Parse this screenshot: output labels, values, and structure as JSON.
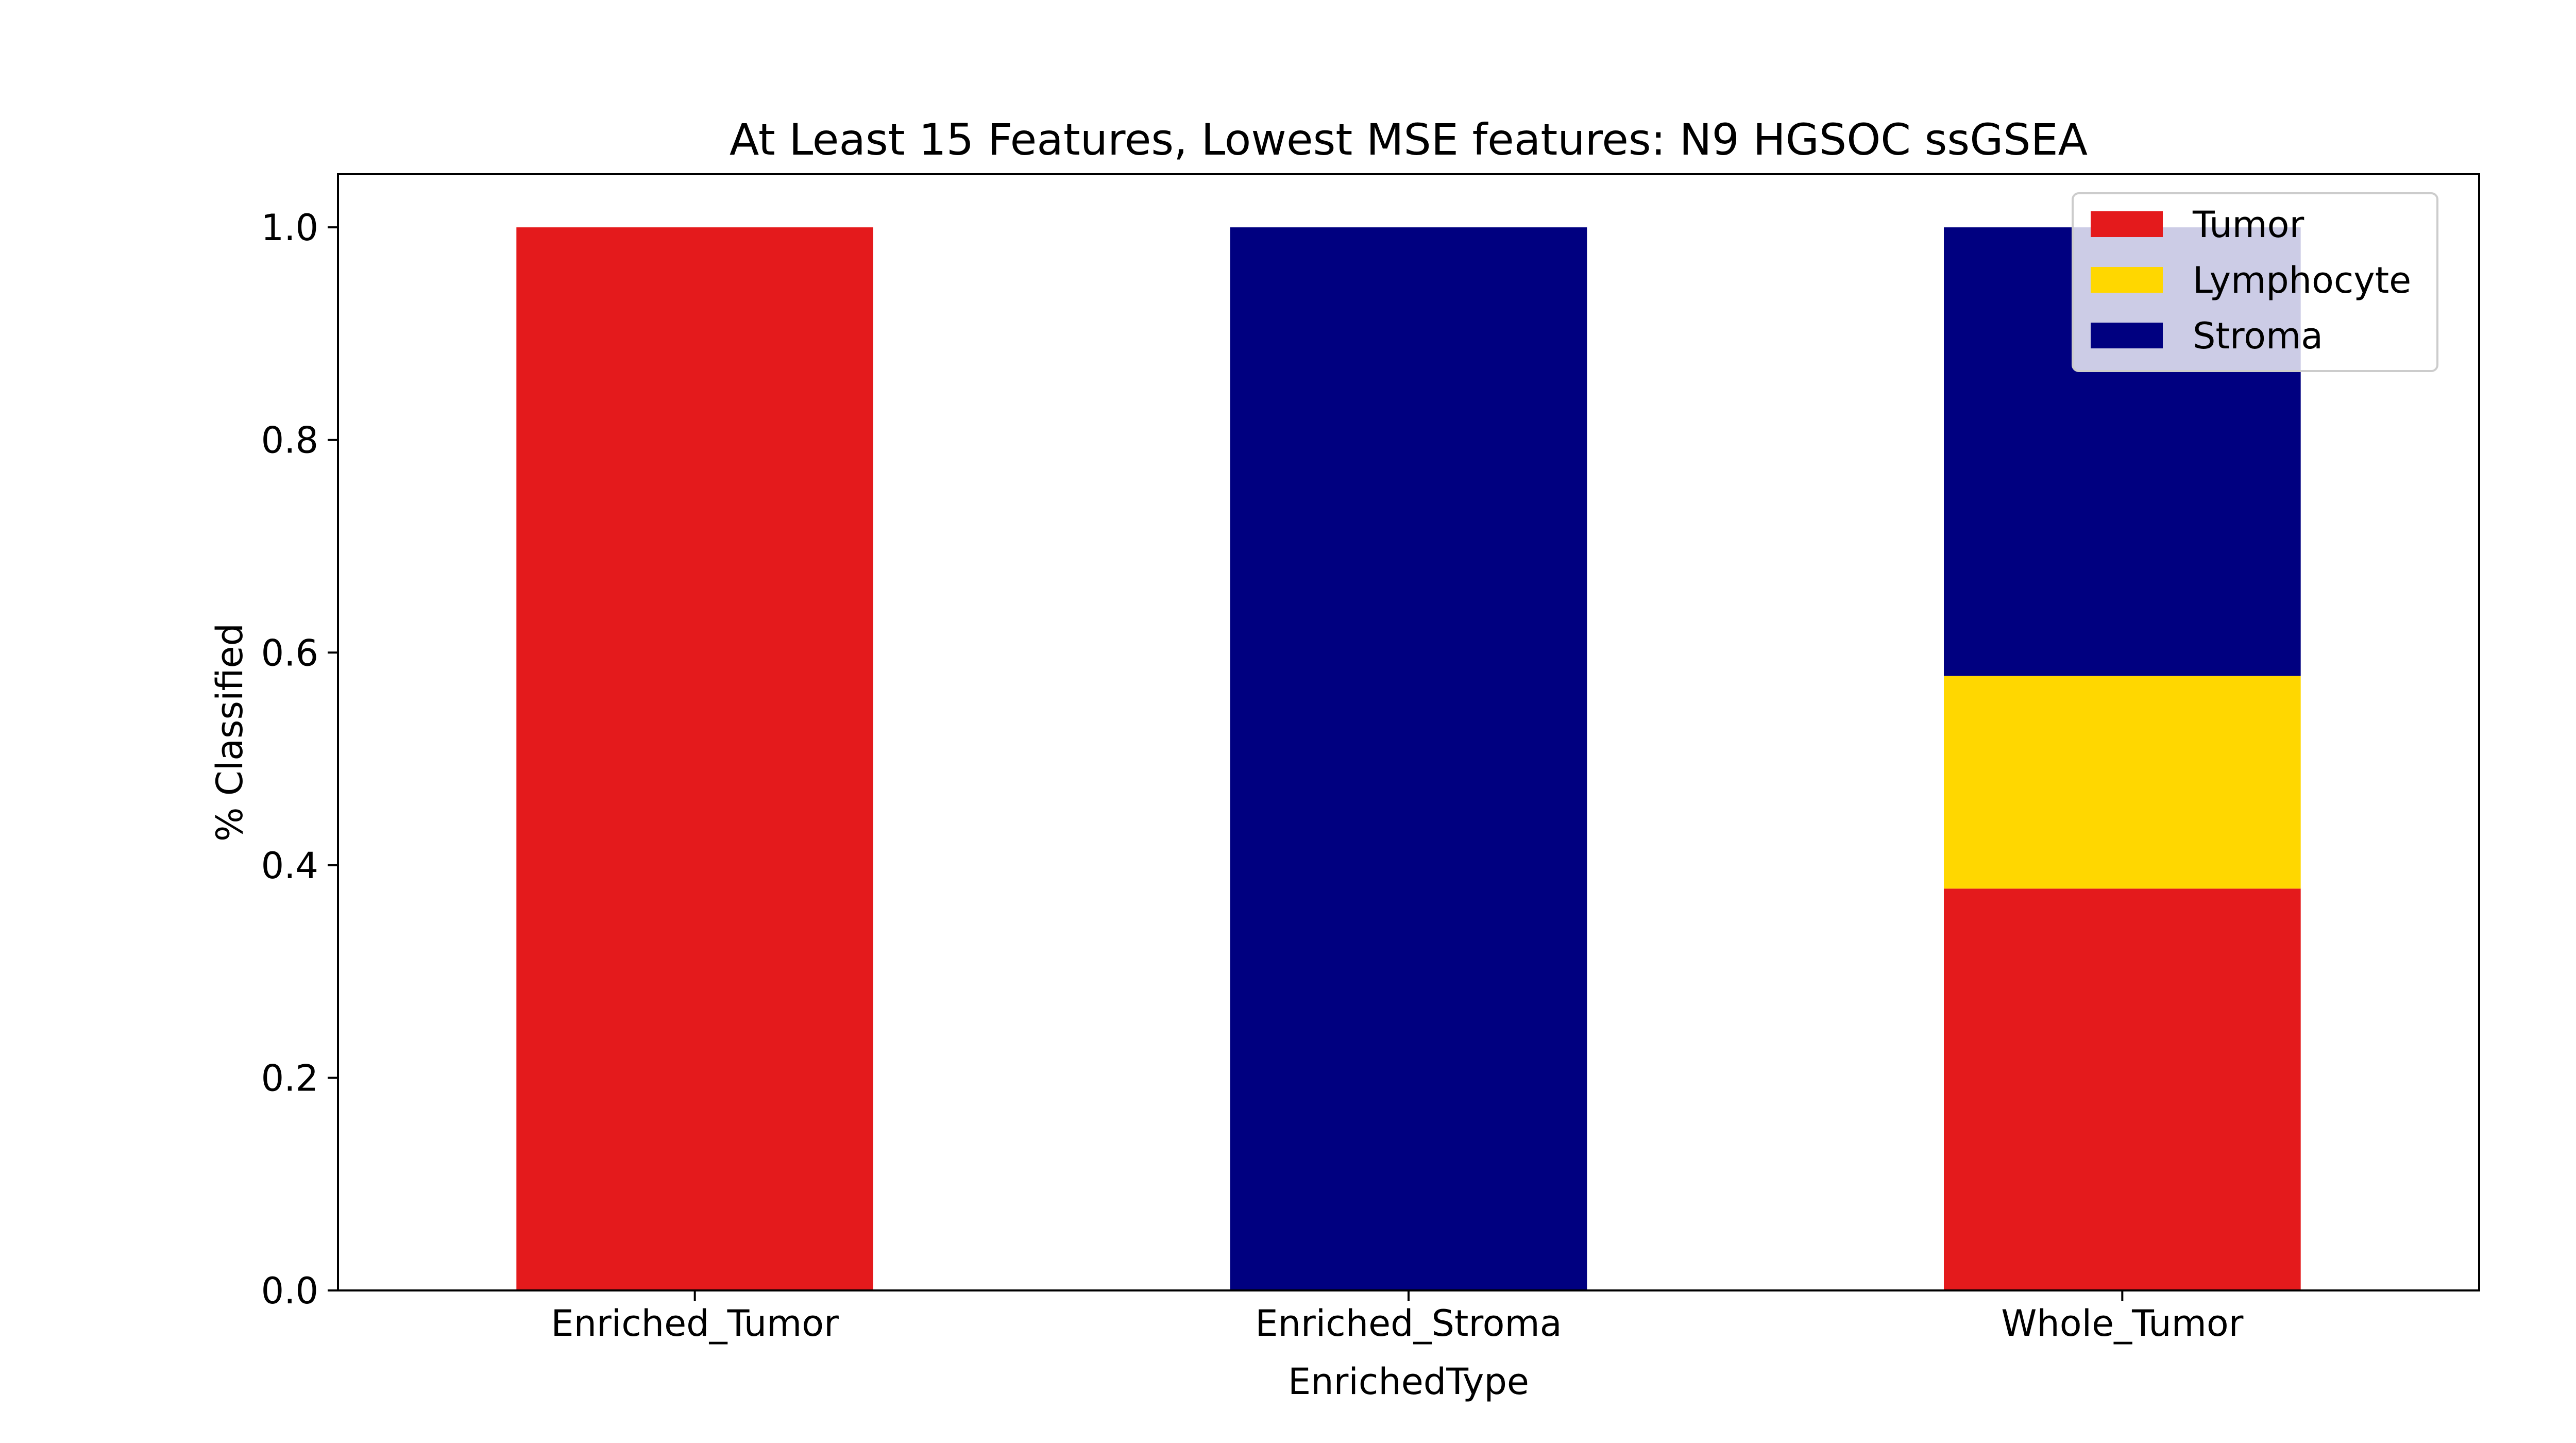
{
  "chart_data": {
    "type": "bar",
    "stacked": true,
    "title": "At Least 15 Features, Lowest MSE features: N9 HGSOC ssGSEA",
    "xlabel": "EnrichedType",
    "ylabel": "% Classified",
    "categories": [
      "Enriched_Tumor",
      "Enriched_Stroma",
      "Whole_Tumor"
    ],
    "series": [
      {
        "name": "Tumor",
        "color": "#e41a1c",
        "values": [
          1.0,
          0.0,
          0.378
        ]
      },
      {
        "name": "Lymphocyte",
        "color": "#ffd700",
        "values": [
          0.0,
          0.0,
          0.2
        ]
      },
      {
        "name": "Stroma",
        "color": "#000080",
        "values": [
          0.0,
          1.0,
          0.422
        ]
      }
    ],
    "ylim": [
      0,
      1.05
    ],
    "yticks": [
      "0.0",
      "0.2",
      "0.4",
      "0.6",
      "0.8",
      "1.0"
    ],
    "ytick_values": [
      0,
      0.2,
      0.4,
      0.6,
      0.8,
      1.0
    ],
    "grid": false,
    "legend_position": "top-right"
  }
}
